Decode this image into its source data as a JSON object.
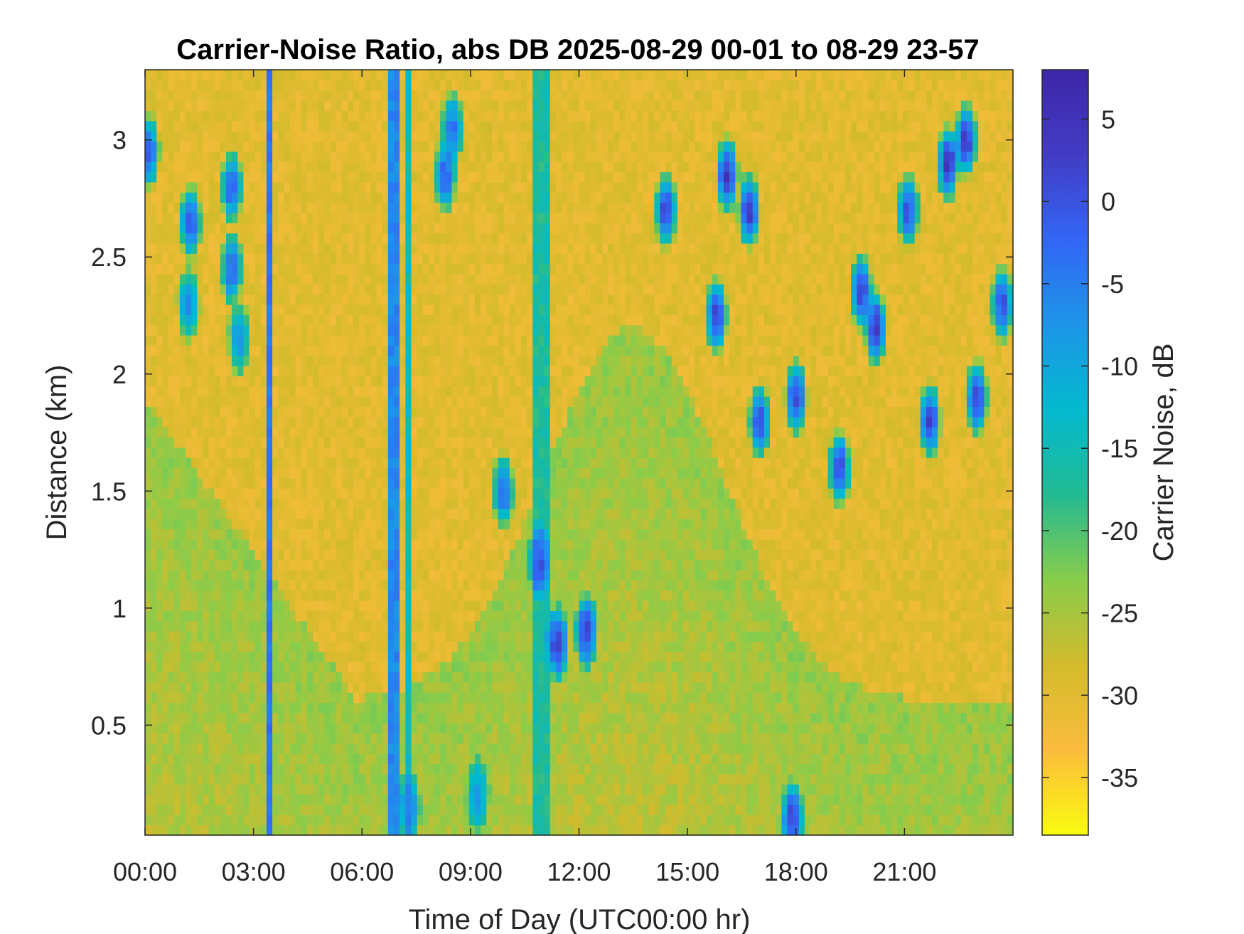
{
  "chart_data": {
    "type": "heatmap",
    "title": "Carrier-Noise Ratio, abs DB 2025-08-29 00-01 to 08-29 23-57",
    "xlabel": "Time of Day (UTC00:00 hr)",
    "ylabel": "Distance (km)",
    "colorbar_label": "Carrier Noise, dB",
    "xlim_hours": [
      0,
      24
    ],
    "ylim_km": [
      0.03,
      3.3
    ],
    "clim_db": [
      -38.5,
      8
    ],
    "x_ticks": [
      {
        "hours": 0,
        "label": "00:00"
      },
      {
        "hours": 3,
        "label": "03:00"
      },
      {
        "hours": 6,
        "label": "06:00"
      },
      {
        "hours": 9,
        "label": "09:00"
      },
      {
        "hours": 12,
        "label": "12:00"
      },
      {
        "hours": 15,
        "label": "15:00"
      },
      {
        "hours": 18,
        "label": "18:00"
      },
      {
        "hours": 21,
        "label": "21:00"
      }
    ],
    "y_ticks": [
      {
        "km": 0.5,
        "label": "0.5"
      },
      {
        "km": 1,
        "label": "1"
      },
      {
        "km": 1.5,
        "label": "1.5"
      },
      {
        "km": 2,
        "label": "2"
      },
      {
        "km": 2.5,
        "label": "2.5"
      },
      {
        "km": 3,
        "label": "3"
      }
    ],
    "colorbar_ticks": [
      {
        "db": 5,
        "label": "5"
      },
      {
        "db": 0,
        "label": "0"
      },
      {
        "db": -5,
        "label": "-5"
      },
      {
        "db": -10,
        "label": "-10"
      },
      {
        "db": -15,
        "label": "-15"
      },
      {
        "db": -20,
        "label": "-20"
      },
      {
        "db": -25,
        "label": "-25"
      },
      {
        "db": -30,
        "label": "-30"
      },
      {
        "db": -35,
        "label": "-35"
      }
    ],
    "colormap": [
      "#F9FB0E",
      "#FBBC3D",
      "#D3BB2C",
      "#89CC4A",
      "#22BA92",
      "#03B9CF",
      "#1D96E8",
      "#3366F5",
      "#423CC5",
      "#3E26A8"
    ],
    "background_db": -30,
    "lower_region_db": -24,
    "vertical_bands": [
      {
        "start_hour": 3.35,
        "end_hour": 3.45,
        "db": -4
      },
      {
        "start_hour": 3.62,
        "end_hour": 3.66,
        "db": -4
      },
      {
        "start_hour": 6.7,
        "end_hour": 7.1,
        "db": -6
      },
      {
        "start_hour": 7.25,
        "end_hour": 7.32,
        "db": -14
      },
      {
        "start_hour": 10.7,
        "end_hour": 11.2,
        "db": -17
      }
    ],
    "features": [
      {
        "hour": 10.9,
        "km": 1.2,
        "db": 0
      },
      {
        "hour": 11.4,
        "km": 0.85,
        "db": 2
      },
      {
        "hour": 12.2,
        "km": 0.9,
        "db": 1
      },
      {
        "hour": 9.9,
        "km": 1.5,
        "db": -3
      },
      {
        "hour": 8.3,
        "km": 2.85,
        "db": -2
      },
      {
        "hour": 8.5,
        "km": 3.05,
        "db": -4
      },
      {
        "hour": 16.1,
        "km": 2.85,
        "db": 4
      },
      {
        "hour": 16.7,
        "km": 2.7,
        "db": 3
      },
      {
        "hour": 14.4,
        "km": 2.7,
        "db": 1
      },
      {
        "hour": 2.6,
        "km": 2.15,
        "db": -7
      },
      {
        "hour": 2.4,
        "km": 2.45,
        "db": -3
      },
      {
        "hour": 2.4,
        "km": 2.8,
        "db": -2
      },
      {
        "hour": 1.2,
        "km": 2.3,
        "db": -6
      },
      {
        "hour": 1.25,
        "km": 2.65,
        "db": -2
      },
      {
        "hour": 0.1,
        "km": 2.95,
        "db": -2
      },
      {
        "hour": 19.2,
        "km": 1.6,
        "db": 1
      },
      {
        "hour": 20.2,
        "km": 2.2,
        "db": 3
      },
      {
        "hour": 19.8,
        "km": 2.35,
        "db": 2
      },
      {
        "hour": 17.0,
        "km": 1.8,
        "db": 0
      },
      {
        "hour": 18.0,
        "km": 1.9,
        "db": 1
      },
      {
        "hour": 21.1,
        "km": 2.7,
        "db": 0
      },
      {
        "hour": 22.2,
        "km": 2.9,
        "db": 4
      },
      {
        "hour": 22.7,
        "km": 3.0,
        "db": 3
      },
      {
        "hour": 23.7,
        "km": 2.3,
        "db": 0
      },
      {
        "hour": 9.2,
        "km": 0.2,
        "db": -8
      },
      {
        "hour": 7.3,
        "km": 0.15,
        "db": -5
      },
      {
        "hour": 17.9,
        "km": 0.1,
        "db": 2
      },
      {
        "hour": 15.8,
        "km": 2.25,
        "db": 1
      },
      {
        "hour": 21.7,
        "km": 1.8,
        "db": 2
      },
      {
        "hour": 23.0,
        "km": 1.9,
        "db": 2
      }
    ]
  }
}
